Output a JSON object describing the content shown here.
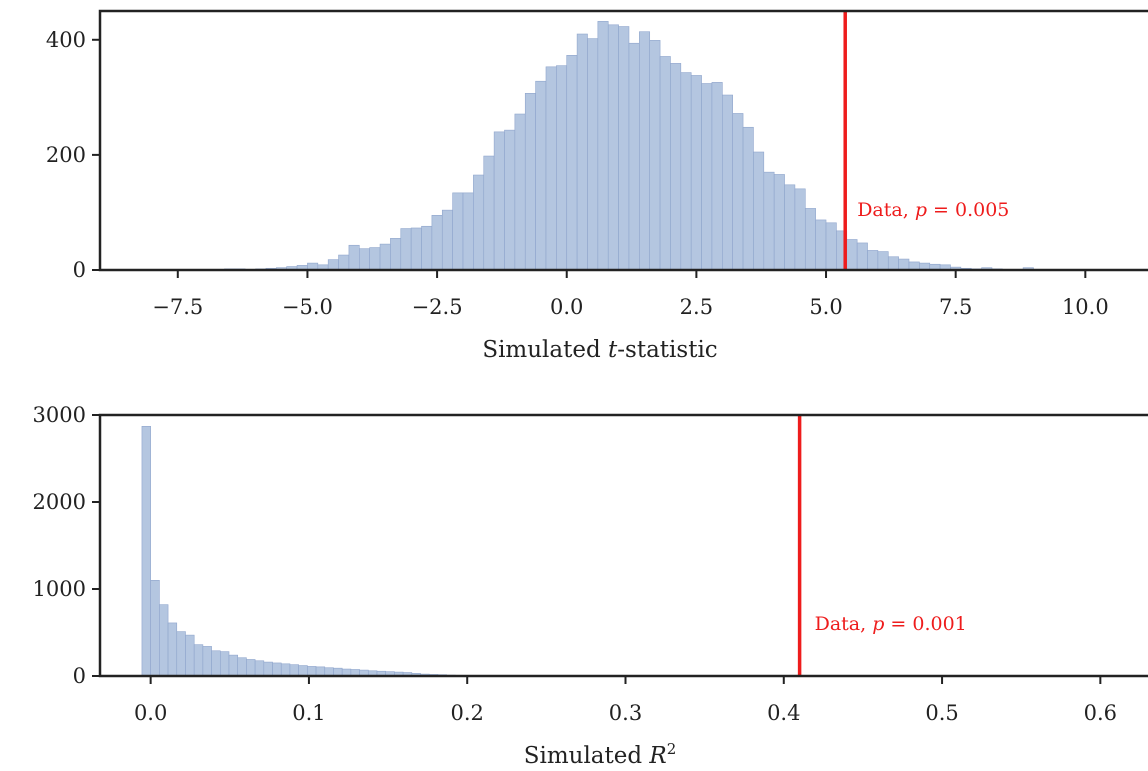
{
  "chart_data": [
    {
      "type": "histogram",
      "xlabel": "Simulated t-statistic",
      "xlabel_parts": {
        "prefix": "Simulated ",
        "var": "t",
        "suffix": "-statistic"
      },
      "xlim": [
        -9.0,
        10.9
      ],
      "ylim": [
        0,
        450
      ],
      "xticks": [
        -7.5,
        -5.0,
        -2.5,
        0.0,
        2.5,
        5.0,
        7.5,
        10.0
      ],
      "xtick_labels": [
        "−7.5",
        "−5.0",
        "−2.5",
        "0.0",
        "2.5",
        "5.0",
        "7.5",
        "10.0"
      ],
      "yticks": [
        0,
        200,
        400
      ],
      "ytick_labels": [
        "0",
        "200",
        "400"
      ],
      "bin_start": -8.2,
      "bin_width": 0.2,
      "counts": [
        1,
        0,
        1,
        0,
        1,
        0,
        1,
        1,
        2,
        2,
        1,
        2,
        3,
        4,
        6,
        8,
        12,
        9,
        18,
        26,
        43,
        37,
        39,
        45,
        55,
        72,
        73,
        76,
        95,
        104,
        134,
        134,
        165,
        198,
        240,
        243,
        271,
        307,
        328,
        353,
        355,
        373,
        410,
        402,
        432,
        426,
        423,
        394,
        414,
        399,
        371,
        359,
        343,
        338,
        324,
        326,
        304,
        272,
        248,
        205,
        170,
        166,
        148,
        141,
        107,
        87,
        82,
        68,
        53,
        47,
        34,
        32,
        23,
        19,
        14,
        12,
        10,
        9,
        5,
        3,
        2,
        4,
        2,
        1,
        1,
        4,
        1,
        1,
        0,
        1
      ],
      "bar_color": "#b4c6e0",
      "bar_edge": "#8fa5cc",
      "vline": {
        "x": 5.37,
        "color": "#ee1c1c"
      },
      "annotation": {
        "text": "Data, ",
        "var": "p",
        "rest": " = 0.005",
        "color": "#ee1c1c"
      }
    },
    {
      "type": "histogram",
      "xlabel": "Simulated R²",
      "xlabel_parts": {
        "prefix": "Simulated ",
        "var": "R",
        "sup": "2"
      },
      "xlim": [
        -0.032,
        0.62
      ],
      "ylim": [
        0,
        3000
      ],
      "xticks": [
        0.0,
        0.1,
        0.2,
        0.3,
        0.4,
        0.5,
        0.6
      ],
      "xtick_labels": [
        "0.0",
        "0.1",
        "0.2",
        "0.3",
        "0.4",
        "0.5",
        "0.6"
      ],
      "yticks": [
        0,
        1000,
        2000,
        3000
      ],
      "ytick_labels": [
        "0",
        "1000",
        "2000",
        "3000"
      ],
      "bin_start": -0.0055,
      "bin_width": 0.0055,
      "counts": [
        2870,
        1100,
        820,
        610,
        510,
        470,
        360,
        340,
        290,
        280,
        240,
        210,
        190,
        175,
        160,
        150,
        140,
        130,
        120,
        110,
        105,
        95,
        90,
        80,
        75,
        68,
        60,
        55,
        50,
        45,
        40,
        30,
        22,
        18,
        15,
        10
      ],
      "bar_color": "#b4c6e0",
      "bar_edge": "#8fa5cc",
      "vline": {
        "x": 0.41,
        "color": "#ee1c1c"
      },
      "annotation": {
        "text": "Data, ",
        "var": "p",
        "rest": " = 0.001",
        "color": "#ee1c1c"
      }
    }
  ]
}
